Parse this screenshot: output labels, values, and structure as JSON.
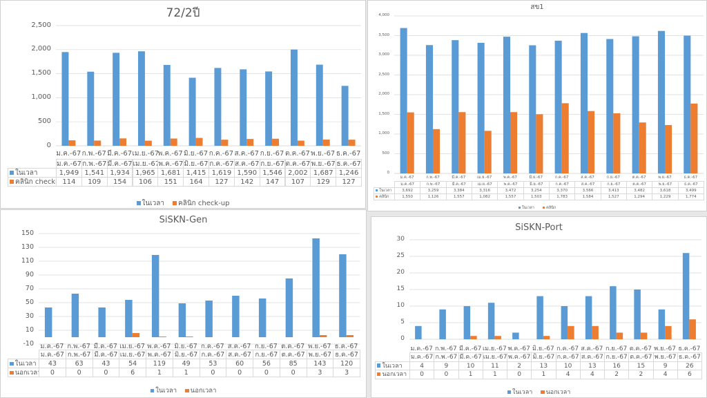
{
  "colors": {
    "series1": "#5b9bd5",
    "series2": "#ed7d31",
    "grid": "#d9d9d9"
  },
  "chart_data": [
    {
      "type": "bar",
      "title": "72/2ปี",
      "categories": [
        "ม.ค.-67",
        "ก.พ.-67",
        "มี.ค.-67",
        "เม.ย.-67",
        "พ.ค.-67",
        "มิ.ย.-67",
        "ก.ค.-67",
        "ส.ค.-67",
        "ก.ย.-67",
        "ต.ค.-67",
        "พ.ย.-67",
        "ธ.ค.-67"
      ],
      "series": [
        {
          "name": "ในเวลา",
          "values": [
            1949,
            1541,
            1934,
            1965,
            1681,
            1415,
            1619,
            1590,
            1546,
            2002,
            1687,
            1246
          ],
          "labels": [
            "1,949",
            "1,541",
            "1,934",
            "1,965",
            "1,681",
            "1,415",
            "1,619",
            "1,590",
            "1,546",
            "2,002",
            "1,687",
            "1,246"
          ]
        },
        {
          "name": "คลินิก check-up",
          "values": [
            114,
            109,
            154,
            106,
            151,
            164,
            127,
            142,
            147,
            107,
            129,
            127
          ],
          "labels": [
            "114",
            "109",
            "154",
            "106",
            "151",
            "164",
            "127",
            "142",
            "147",
            "107",
            "129",
            "127"
          ]
        }
      ],
      "ylim": [
        0,
        2500
      ],
      "yticks": [
        "0",
        "500",
        "1,000",
        "1,500",
        "2,000",
        "2,500"
      ],
      "ytick_values": [
        0,
        500,
        1000,
        1500,
        2000,
        2500
      ],
      "grid": true,
      "legend": "bottom",
      "data_table": true
    },
    {
      "type": "bar",
      "title": "สข1",
      "categories": [
        "ม.ค.-67",
        "ก.พ.-67",
        "มี.ค.-67",
        "เม.ย.-67",
        "พ.ค.-67",
        "มิ.ย.-67",
        "ก.ค.-67",
        "ส.ค.-67",
        "ก.ย.-67",
        "ต.ค.-67",
        "พ.ย.-67",
        "ธ.ค.-67"
      ],
      "series": [
        {
          "name": "ในเวลา",
          "values": [
            3692,
            3259,
            3384,
            3316,
            3472,
            3254,
            3370,
            3566,
            3413,
            3482,
            3618,
            3499
          ],
          "labels": [
            "3,692",
            "3,259",
            "3,384",
            "3,316",
            "3,472",
            "3,254",
            "3,370",
            "3,566",
            "3,413",
            "3,482",
            "3,618",
            "3,499"
          ]
        },
        {
          "name": "คลินิก",
          "values": [
            1550,
            1126,
            1557,
            1082,
            1557,
            1503,
            1783,
            1584,
            1527,
            1294,
            1229,
            1774
          ],
          "labels": [
            "1,550",
            "1,126",
            "1,557",
            "1,082",
            "1,557",
            "1,503",
            "1,783",
            "1,584",
            "1,527",
            "1,294",
            "1,229",
            "1,774"
          ]
        }
      ],
      "ylim": [
        0,
        4000
      ],
      "yticks": [
        "0",
        "500",
        "1,000",
        "1,500",
        "2,000",
        "2,500",
        "3,000",
        "3,500",
        "4,000"
      ],
      "ytick_values": [
        0,
        500,
        1000,
        1500,
        2000,
        2500,
        3000,
        3500,
        4000
      ],
      "grid": true,
      "legend": "bottom",
      "data_table": true
    },
    {
      "type": "bar",
      "title": "SiSKN-Gen",
      "categories": [
        "ม.ค.-67",
        "ก.พ.-67",
        "มี.ค.-67",
        "เม.ย.-67",
        "พ.ค.-67",
        "มิ.ย.-67",
        "ก.ค.-67",
        "ส.ค.-67",
        "ก.ย.-67",
        "ต.ค.-67",
        "พ.ย.-67",
        "ธ.ค.-67"
      ],
      "series": [
        {
          "name": "ในเวลา",
          "values": [
            43,
            63,
            43,
            54,
            119,
            49,
            53,
            60,
            56,
            85,
            143,
            120
          ],
          "labels": [
            "43",
            "63",
            "43",
            "54",
            "119",
            "49",
            "53",
            "60",
            "56",
            "85",
            "143",
            "120"
          ]
        },
        {
          "name": "นอกเวลา",
          "values": [
            0,
            0,
            0,
            6,
            1,
            1,
            0,
            0,
            0,
            0,
            3,
            3
          ],
          "labels": [
            "0",
            "0",
            "0",
            "6",
            "1",
            "1",
            "0",
            "0",
            "0",
            "0",
            "3",
            "3"
          ]
        }
      ],
      "ylim": [
        -10,
        150
      ],
      "yticks": [
        "-10",
        "10",
        "30",
        "50",
        "70",
        "90",
        "110",
        "130",
        "150"
      ],
      "ytick_values": [
        -10,
        10,
        30,
        50,
        70,
        90,
        110,
        130,
        150
      ],
      "grid": true,
      "legend": "bottom",
      "data_table": true
    },
    {
      "type": "bar",
      "title": "SiSKN-Port",
      "categories": [
        "ม.ค.-67",
        "ก.พ.-67",
        "มี.ค.-67",
        "เม.ย.-67",
        "พ.ค.-67",
        "มิ.ย.-67",
        "ก.ค.-67",
        "ส.ค.-67",
        "ก.ย.-67",
        "ต.ค.-67",
        "พ.ย.-67",
        "ธ.ค.-67"
      ],
      "series": [
        {
          "name": "ในเวลา",
          "values": [
            4,
            9,
            10,
            11,
            2,
            13,
            10,
            13,
            16,
            15,
            9,
            26
          ],
          "labels": [
            "4",
            "9",
            "10",
            "11",
            "2",
            "13",
            "10",
            "13",
            "16",
            "15",
            "9",
            "26"
          ]
        },
        {
          "name": "นอกเวลา",
          "values": [
            0,
            0,
            1,
            1,
            0,
            1,
            4,
            4,
            2,
            2,
            4,
            6
          ],
          "labels": [
            "0",
            "0",
            "1",
            "1",
            "0",
            "1",
            "4",
            "4",
            "2",
            "2",
            "4",
            "6"
          ]
        }
      ],
      "ylim": [
        0,
        30
      ],
      "yticks": [
        "0",
        "5",
        "10",
        "15",
        "20",
        "25",
        "30"
      ],
      "ytick_values": [
        0,
        5,
        10,
        15,
        20,
        25,
        30
      ],
      "grid": true,
      "legend": "bottom",
      "data_table": true
    }
  ]
}
